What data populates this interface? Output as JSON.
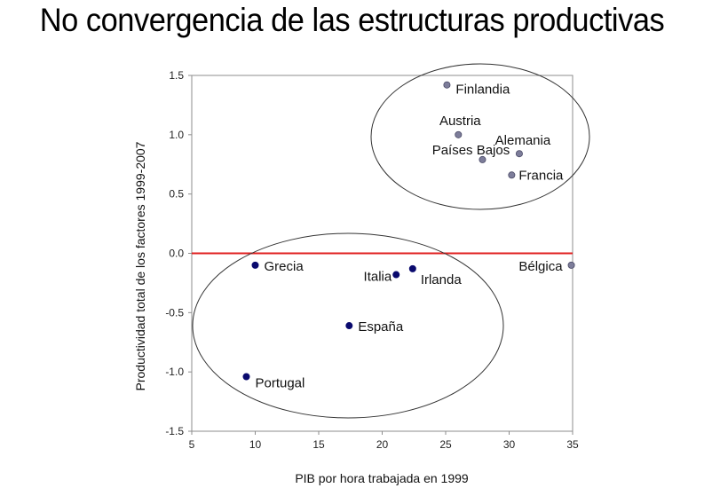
{
  "title": "No convergencia de las estructuras productivas",
  "chart_data": {
    "type": "scatter",
    "xlabel": "PIB por hora trabajada en 1999",
    "ylabel": "Productividad total de los factores 1999-2007",
    "xlim": [
      5,
      35
    ],
    "ylim": [
      -1.5,
      1.5
    ],
    "x_ticks": [
      "5",
      "10",
      "15",
      "20",
      "25",
      "30",
      "35"
    ],
    "y_ticks": [
      "1.5",
      "1.0",
      "0.5",
      "0.0",
      "-0.5",
      "-1.0",
      "-1.5"
    ],
    "reference_line_y": 0,
    "colors": {
      "group_high": "#7d7d9a",
      "group_low": "#0a0a6e",
      "reference_line": "#e02020"
    },
    "points": [
      {
        "label": "Finlandia",
        "x": 25.1,
        "y": 1.42,
        "group": "high"
      },
      {
        "label": "Austria",
        "x": 26.0,
        "y": 1.0,
        "group": "high"
      },
      {
        "label": "Países Bajos",
        "x": 27.9,
        "y": 0.79,
        "group": "high"
      },
      {
        "label": "Alemania",
        "x": 30.8,
        "y": 0.84,
        "group": "high"
      },
      {
        "label": "Francia",
        "x": 30.2,
        "y": 0.66,
        "group": "high"
      },
      {
        "label": "Bélgica",
        "x": 34.9,
        "y": -0.1,
        "group": "high"
      },
      {
        "label": "Grecia",
        "x": 10.0,
        "y": -0.1,
        "group": "low"
      },
      {
        "label": "Italia",
        "x": 21.1,
        "y": -0.18,
        "group": "low"
      },
      {
        "label": "Irlanda",
        "x": 22.4,
        "y": -0.13,
        "group": "low"
      },
      {
        "label": "España",
        "x": 17.4,
        "y": -0.61,
        "group": "low"
      },
      {
        "label": "Portugal",
        "x": 9.3,
        "y": -1.04,
        "group": "low"
      }
    ]
  }
}
